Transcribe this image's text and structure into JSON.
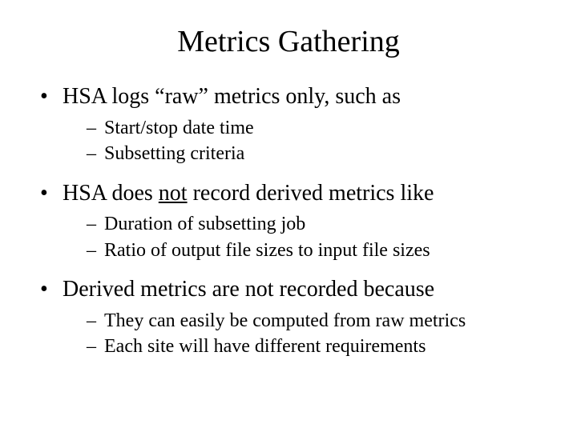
{
  "title": "Metrics Gathering",
  "b1_pre": "HSA logs “raw” metrics only, such as",
  "b1_s1": "Start/stop date time",
  "b1_s2": "Subsetting criteria",
  "b2_pre": "HSA does ",
  "b2_ul": "not",
  "b2_post": " record derived metrics like",
  "b2_s1": "Duration of subsetting job",
  "b2_s2": "Ratio of output file sizes to input file sizes",
  "b3": "Derived metrics are not recorded because",
  "b3_s1": "They can easily be computed from raw metrics",
  "b3_s2": "Each site will have different requirements"
}
